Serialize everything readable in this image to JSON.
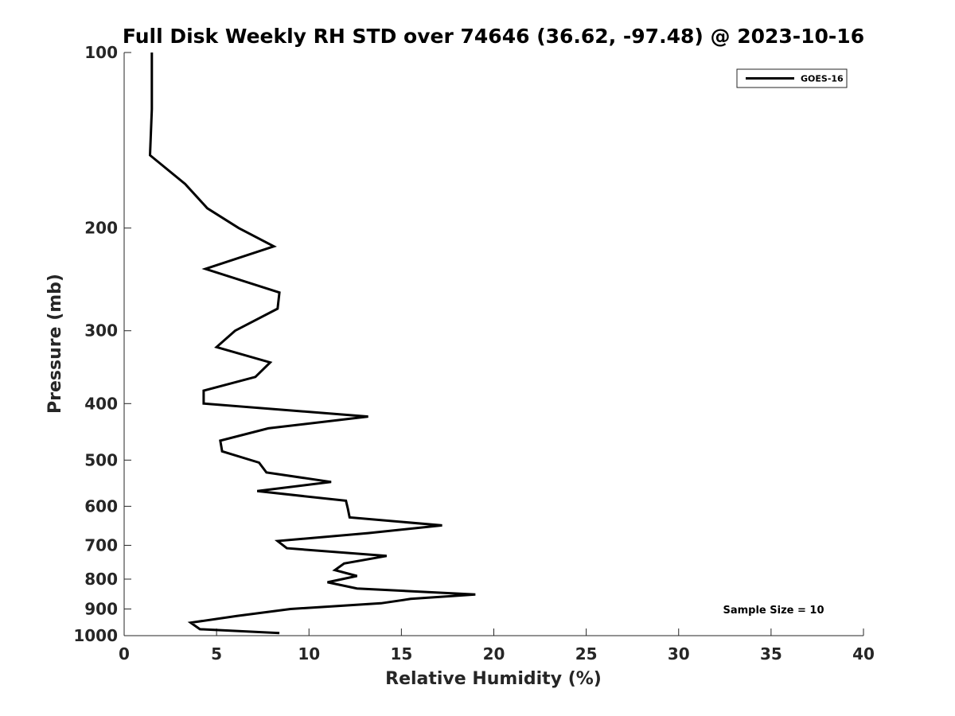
{
  "chart_data": {
    "type": "line",
    "title": "Full Disk Weekly RH STD over 74646 (36.62, -97.48) @ 2023-10-16",
    "xlabel": "Relative Humidity (%)",
    "ylabel": "Pressure (mb)",
    "xlim": [
      0,
      40
    ],
    "ylim": [
      1000,
      100
    ],
    "yscale": "log",
    "xticks": [
      0,
      5,
      10,
      15,
      20,
      25,
      30,
      35,
      40
    ],
    "xtick_labels": [
      "0",
      "5",
      "10",
      "15",
      "20",
      "25",
      "30",
      "35",
      "40"
    ],
    "yticks": [
      100,
      200,
      300,
      400,
      500,
      600,
      700,
      800,
      900,
      1000
    ],
    "ytick_labels": [
      "100",
      "200",
      "300",
      "400",
      "500",
      "600",
      "700",
      "800",
      "900",
      "1000"
    ],
    "legend": {
      "position": "top-right",
      "entries": [
        "GOES-16"
      ]
    },
    "annotation": "Sample Size = 10",
    "series": [
      {
        "name": "GOES-16",
        "color": "#000000",
        "points": [
          [
            1.5,
            100
          ],
          [
            1.5,
            125
          ],
          [
            1.4,
            150
          ],
          [
            3.3,
            168
          ],
          [
            4.5,
            185
          ],
          [
            6.2,
            200
          ],
          [
            8.1,
            215
          ],
          [
            4.4,
            235
          ],
          [
            8.4,
            258
          ],
          [
            8.3,
            275
          ],
          [
            6.0,
            300
          ],
          [
            5.0,
            320
          ],
          [
            7.9,
            340
          ],
          [
            7.1,
            360
          ],
          [
            4.3,
            380
          ],
          [
            4.3,
            400
          ],
          [
            13.2,
            421
          ],
          [
            7.8,
            441
          ],
          [
            5.2,
            463
          ],
          [
            5.3,
            483
          ],
          [
            7.3,
            505
          ],
          [
            7.7,
            525
          ],
          [
            11.2,
            545
          ],
          [
            7.2,
            565
          ],
          [
            12.0,
            587
          ],
          [
            12.1,
            605
          ],
          [
            12.2,
            627
          ],
          [
            17.2,
            647
          ],
          [
            13.2,
            667
          ],
          [
            8.3,
            688
          ],
          [
            8.8,
            708
          ],
          [
            14.2,
            730
          ],
          [
            11.9,
            752
          ],
          [
            11.4,
            772
          ],
          [
            12.6,
            790
          ],
          [
            11.0,
            810
          ],
          [
            12.6,
            830
          ],
          [
            19.0,
            850
          ],
          [
            15.5,
            865
          ],
          [
            13.9,
            880
          ],
          [
            9.0,
            900
          ],
          [
            6.1,
            925
          ],
          [
            3.6,
            950
          ],
          [
            4.1,
            975
          ],
          [
            8.4,
            990
          ]
        ]
      }
    ]
  }
}
